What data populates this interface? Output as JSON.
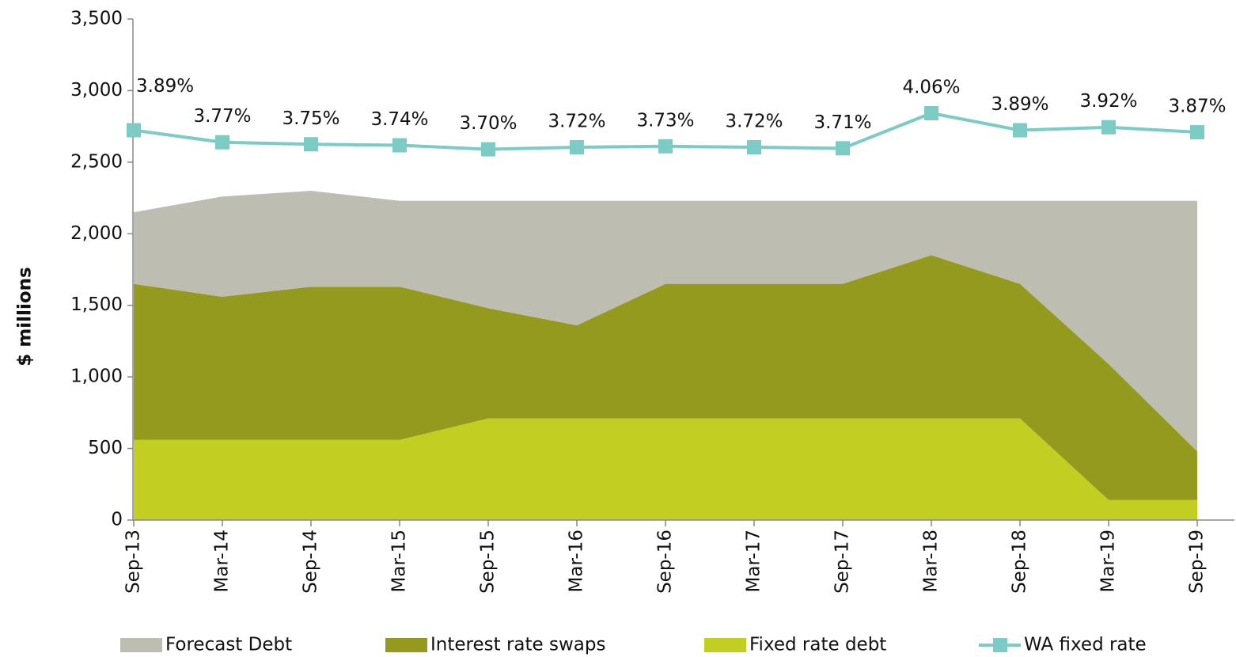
{
  "chart_data": {
    "type": "stacked_area_line",
    "y_label": "$ millions",
    "categories": [
      "Sep-13",
      "Mar-14",
      "Sep-14",
      "Mar-15",
      "Sep-15",
      "Mar-16",
      "Sep-16",
      "Mar-17",
      "Sep-17",
      "Mar-18",
      "Sep-18",
      "Mar-19",
      "Sep-19"
    ],
    "series": [
      {
        "name": "Fixed rate debt",
        "color": "#c2cf22",
        "values": [
          560,
          560,
          560,
          560,
          710,
          710,
          710,
          710,
          710,
          710,
          710,
          140,
          140
        ]
      },
      {
        "name": "Interest rate swaps",
        "color": "#949a1e",
        "values": [
          1090,
          1000,
          1070,
          1070,
          770,
          650,
          940,
          940,
          940,
          1140,
          940,
          950,
          340
        ]
      },
      {
        "name": "Forecast Debt",
        "color": "#bdbdb2",
        "values": [
          500,
          700,
          670,
          600,
          750,
          870,
          580,
          580,
          580,
          380,
          580,
          1140,
          1750
        ]
      },
      {
        "name": "WA fixed rate",
        "color": "#7ccbc5",
        "axis": "y2",
        "values": [
          3.89,
          3.77,
          3.75,
          3.74,
          3.7,
          3.72,
          3.73,
          3.72,
          3.71,
          4.06,
          3.89,
          3.92,
          3.87
        ],
        "value_labels": [
          "3.89%",
          "3.77%",
          "3.75%",
          "3.74%",
          "3.70%",
          "3.72%",
          "3.73%",
          "3.72%",
          "3.71%",
          "4.06%",
          "3.89%",
          "3.92%",
          "3.87%"
        ]
      }
    ],
    "ylim": [
      0,
      3500
    ],
    "yticks": [
      0,
      500,
      {
        "value": 1000,
        "label": "1,000"
      },
      {
        "value": 1500,
        "label": "1,500"
      },
      {
        "value": 2000,
        "label": "2,000"
      },
      {
        "value": 2500,
        "label": "2,500"
      },
      {
        "value": 3000,
        "label": "3,000"
      },
      {
        "value": 3500,
        "label": "3,500"
      }
    ],
    "y2lim": [
      0,
      5
    ],
    "legend": "bottom"
  }
}
